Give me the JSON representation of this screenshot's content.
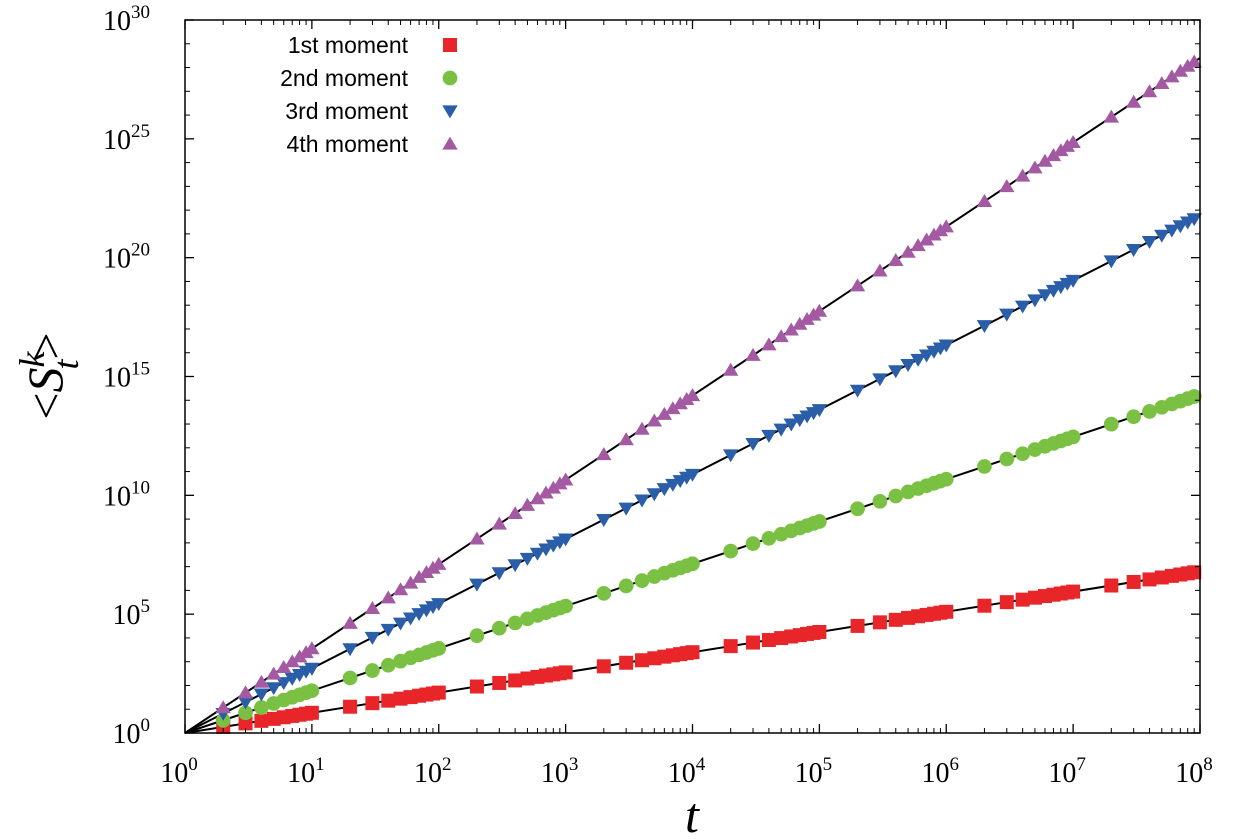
{
  "chart_data": {
    "type": "scatter",
    "title": "",
    "xlabel": "t",
    "ylabel": {
      "open": "<",
      "base": "S",
      "subscript": "t",
      "superscript": "k",
      "close": ">"
    },
    "xscale": "log",
    "yscale": "log",
    "xlim": [
      1,
      100000000
    ],
    "ylim": [
      1,
      1e+30
    ],
    "x_ticks": [
      {
        "base": "10",
        "exp": "0"
      },
      {
        "base": "10",
        "exp": "1"
      },
      {
        "base": "10",
        "exp": "2"
      },
      {
        "base": "10",
        "exp": "3"
      },
      {
        "base": "10",
        "exp": "4"
      },
      {
        "base": "10",
        "exp": "5"
      },
      {
        "base": "10",
        "exp": "6"
      },
      {
        "base": "10",
        "exp": "7"
      },
      {
        "base": "10",
        "exp": "8"
      }
    ],
    "y_ticks": [
      {
        "base": "10",
        "exp": "0"
      },
      {
        "base": "10",
        "exp": "5"
      },
      {
        "base": "10",
        "exp": "10"
      },
      {
        "base": "10",
        "exp": "15"
      },
      {
        "base": "10",
        "exp": "20"
      },
      {
        "base": "10",
        "exp": "25"
      },
      {
        "base": "10",
        "exp": "30"
      }
    ],
    "grid": false,
    "legend_position": "top-left",
    "fit_lines": "black power-law fits through each series",
    "x": [
      2,
      3,
      4,
      5,
      6,
      7,
      8,
      9,
      10,
      20,
      30,
      40,
      50,
      60,
      70,
      80,
      90,
      100,
      200,
      300,
      400,
      500,
      600,
      700,
      800,
      900,
      1000,
      2000,
      3000,
      4000,
      5000,
      6000,
      7000,
      8000,
      9000,
      10000,
      20000,
      30000,
      40000,
      50000,
      60000,
      70000,
      80000,
      90000,
      100000,
      200000,
      300000,
      400000,
      500000,
      600000,
      700000,
      800000,
      900000,
      1000000,
      2000000,
      3000000,
      4000000,
      5000000,
      6000000,
      7000000,
      8000000,
      9000000,
      10000000,
      20000000,
      30000000,
      40000000,
      50000000,
      60000000,
      70000000,
      80000000,
      90000000
    ],
    "series": [
      {
        "name": "1st moment",
        "marker": "square",
        "color": "#e8262a",
        "exponent": 0.85
      },
      {
        "name": "2nd moment",
        "marker": "circle",
        "color": "#7ac143",
        "exponent": 1.78
      },
      {
        "name": "3rd moment",
        "marker": "triangle-down",
        "color": "#2a5ea8",
        "exponent": 2.72
      },
      {
        "name": "4th moment",
        "marker": "triangle-up",
        "color": "#a45aa3",
        "exponent": 3.55
      }
    ]
  }
}
